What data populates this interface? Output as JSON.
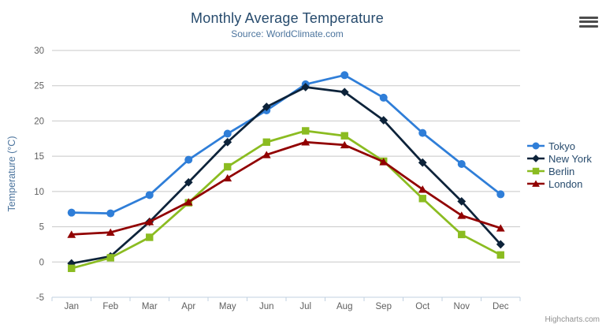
{
  "chart_data": {
    "type": "line",
    "title": "Monthly Average Temperature",
    "subtitle": "Source: WorldClimate.com",
    "categories": [
      "Jan",
      "Feb",
      "Mar",
      "Apr",
      "May",
      "Jun",
      "Jul",
      "Aug",
      "Sep",
      "Oct",
      "Nov",
      "Dec"
    ],
    "series": [
      {
        "name": "Tokyo",
        "color": "#2f7ed8",
        "marker": "circle",
        "values": [
          7.0,
          6.9,
          9.5,
          14.5,
          18.2,
          21.5,
          25.2,
          26.5,
          23.3,
          18.3,
          13.9,
          9.6
        ]
      },
      {
        "name": "New York",
        "color": "#0d233a",
        "marker": "diamond",
        "values": [
          -0.2,
          0.8,
          5.7,
          11.3,
          17.0,
          22.0,
          24.8,
          24.1,
          20.1,
          14.1,
          8.6,
          2.5
        ]
      },
      {
        "name": "Berlin",
        "color": "#8bbc21",
        "marker": "square",
        "values": [
          -0.9,
          0.6,
          3.5,
          8.4,
          13.5,
          17.0,
          18.6,
          17.9,
          14.3,
          9.0,
          3.9,
          1.0
        ]
      },
      {
        "name": "London",
        "color": "#910000",
        "marker": "triangle",
        "values": [
          3.9,
          4.2,
          5.7,
          8.5,
          11.9,
          15.2,
          17.0,
          16.6,
          14.2,
          10.3,
          6.6,
          4.8
        ]
      }
    ],
    "xlabel": "",
    "ylabel": "Temperature (°C)",
    "ylim": [
      -5,
      30
    ],
    "ytick_interval": 5,
    "grid": true,
    "legend_position": "right"
  },
  "credits_label": "Highcharts.com",
  "export_menu": {
    "icon": "hamburger-icon"
  },
  "colors": {
    "title": "#274b6d",
    "subtitle": "#4d759e",
    "axis_label": "#606060",
    "axis_title": "#4d759e",
    "gridline": "#c8c8c8",
    "axis_line": "#c0d0e0",
    "legend_text": "#274b6d",
    "credits": "#909090",
    "background": "#ffffff"
  }
}
